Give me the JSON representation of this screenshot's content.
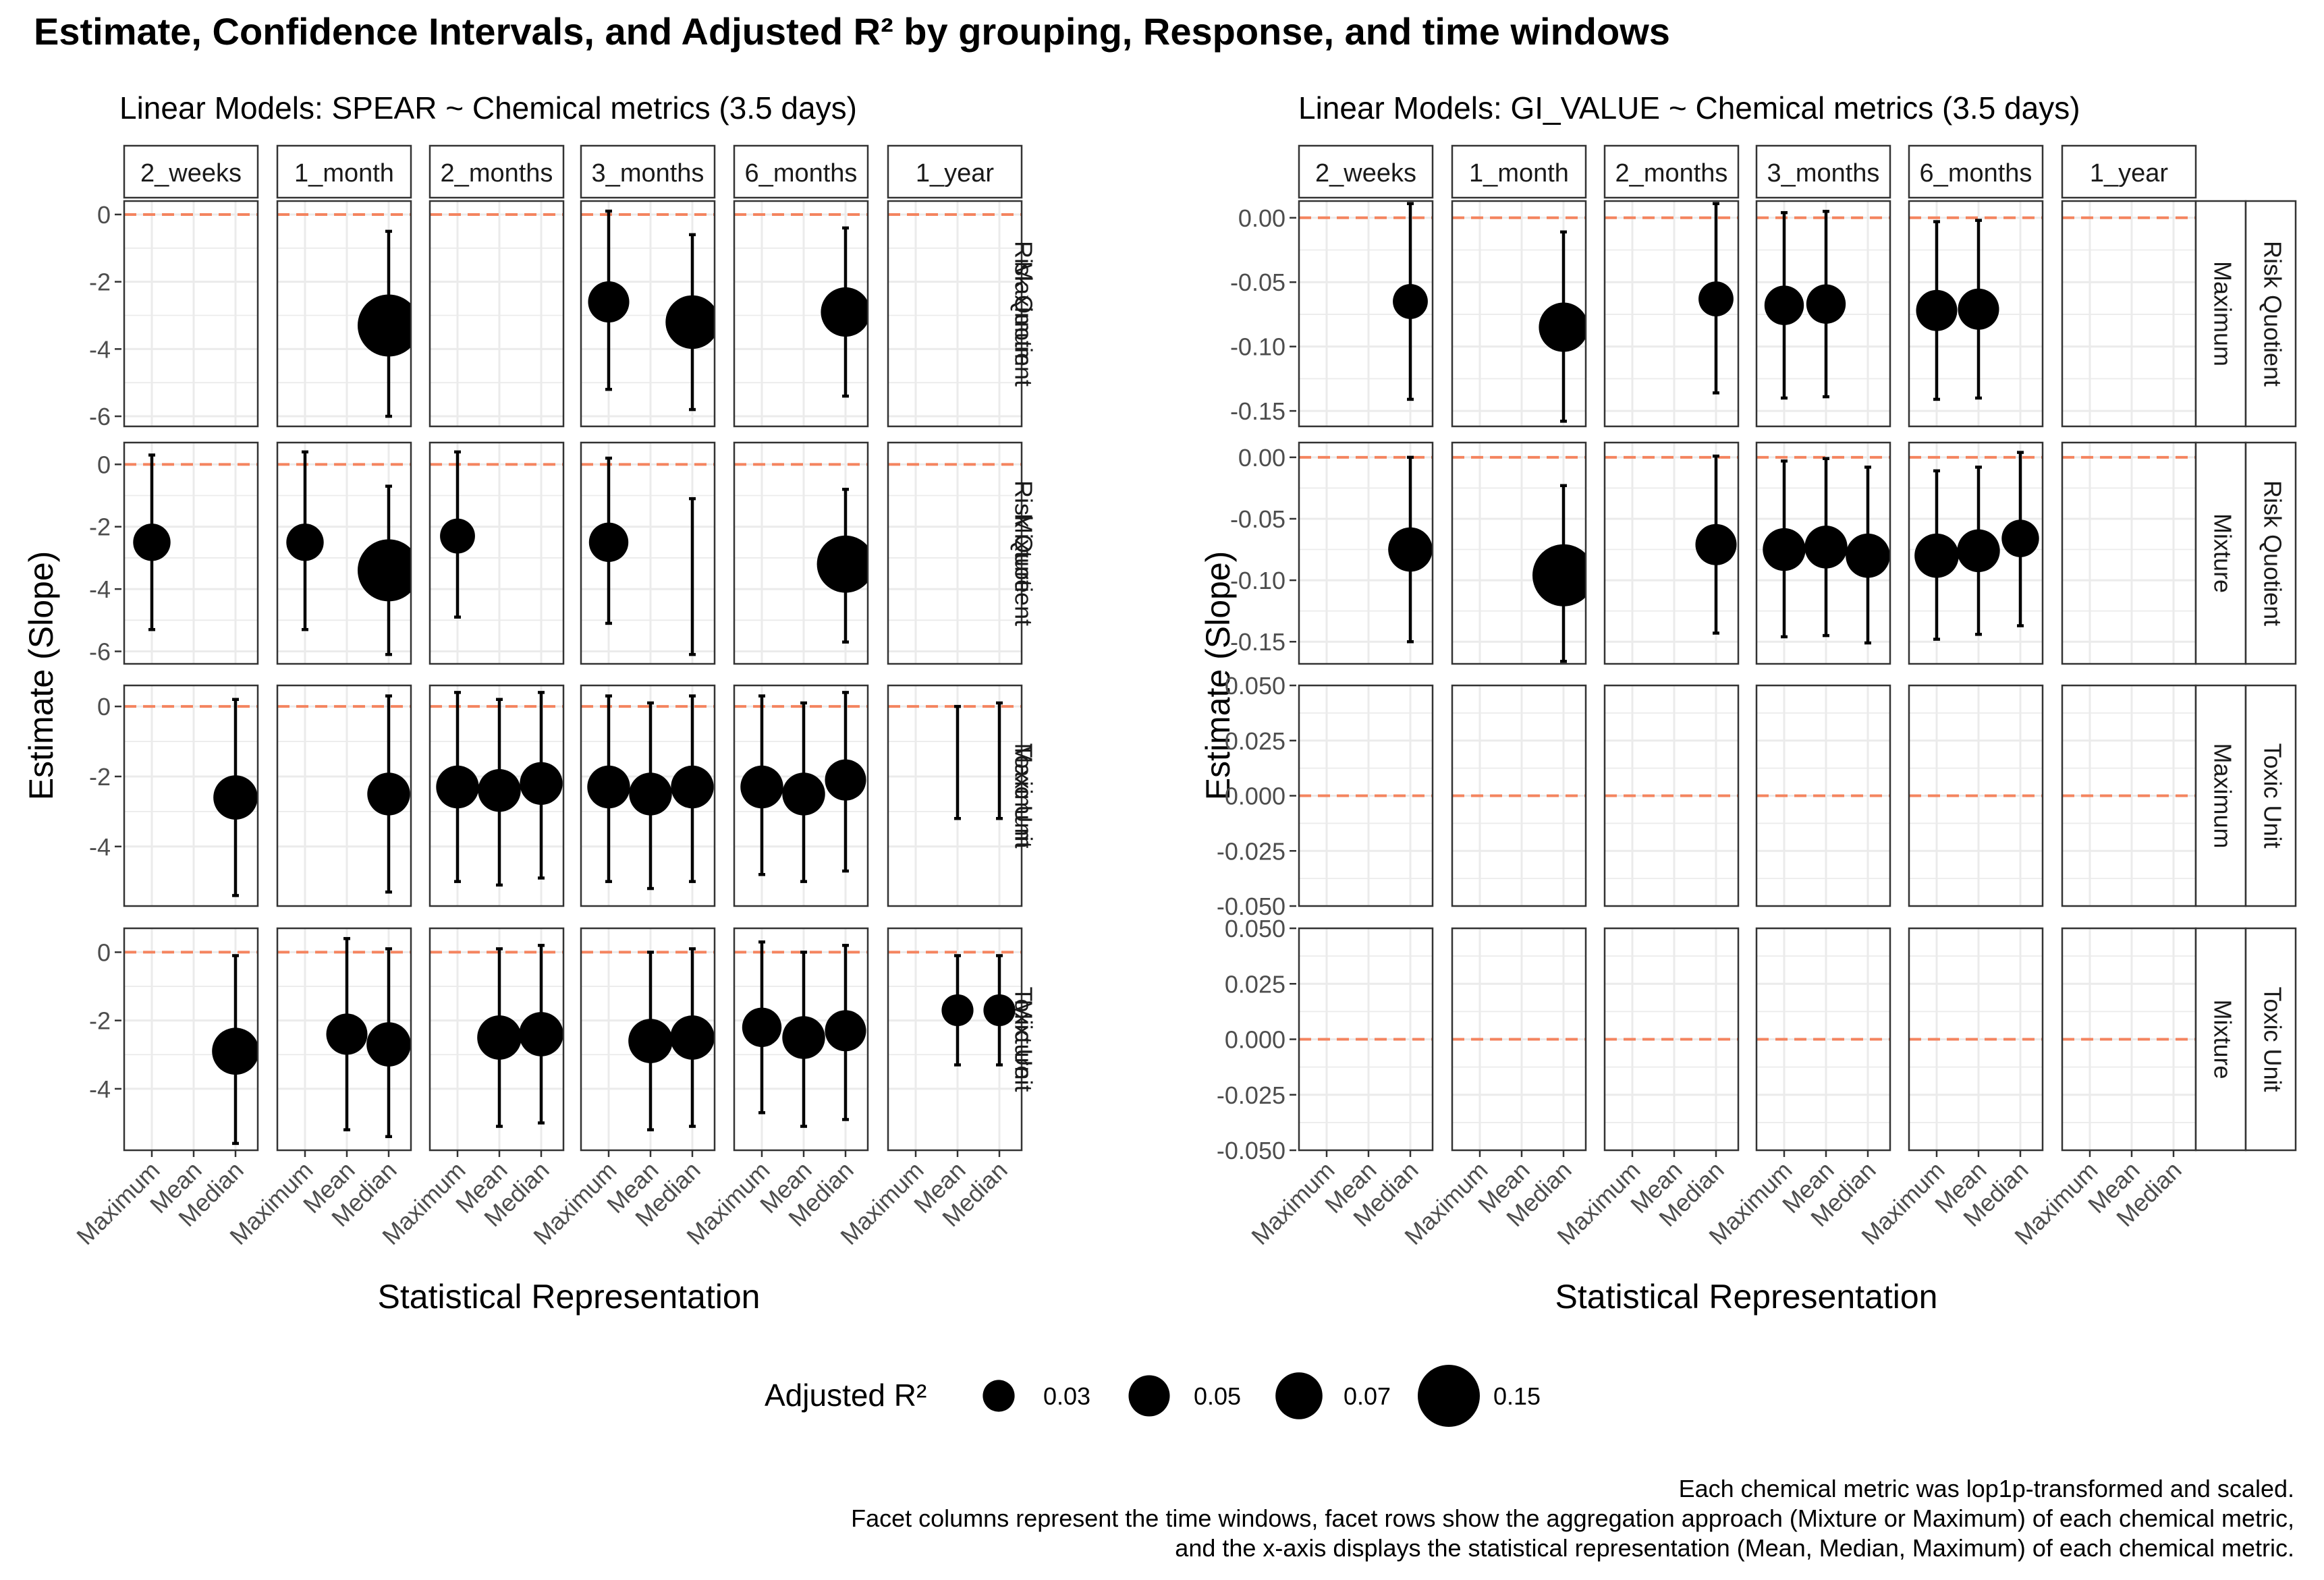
{
  "title": "Estimate, Confidence Intervals, and Adjusted R² by grouping, Response, and time windows",
  "colors": {
    "reference_line": "#f4845f",
    "points": "#000000",
    "grid": "#ebebeb",
    "panel_border": "#333333",
    "strip_border": "#333333",
    "axis_text": "#4d4d4d"
  },
  "size_legend": {
    "title": "Adjusted R²",
    "entries": [
      {
        "label": "0.03",
        "value": 0.03
      },
      {
        "label": "0.05",
        "value": 0.05
      },
      {
        "label": "0.07",
        "value": 0.07
      },
      {
        "label": "0.15",
        "value": 0.15
      }
    ]
  },
  "caption": [
    "Each chemical metric was lop1p-transformed and scaled.",
    "Facet columns represent the time windows, facet rows show the aggregation approach (Mixture or Maximum) of each chemical metric,",
    "and the x-axis displays the statistical representation (Mean, Median, Maximum) of each chemical metric."
  ],
  "chart_data": [
    {
      "type": "scatter",
      "subtitle": "Linear Models: SPEAR ~ Chemical metrics (3.5 days)",
      "xlabel": "Statistical Representation",
      "ylabel": "Estimate (Slope)",
      "categories": [
        "Maximum",
        "Mean",
        "Median"
      ],
      "columns": [
        "2_weeks",
        "1_month",
        "2_months",
        "3_months",
        "6_months",
        "1_year"
      ],
      "grid": true,
      "reference_line_y": 0,
      "rows": [
        {
          "label_a": "Risk Quotient",
          "label_b": "Maximum",
          "ylim": [
            -6.3,
            0.4
          ],
          "yticks": [
            0,
            -2,
            -4,
            -6
          ],
          "ytick_labels": [
            "0",
            "-2",
            "-4",
            "-6"
          ],
          "points": [
            {
              "window": "1_month",
              "category": "Median",
              "y": -3.3,
              "lo": -6.0,
              "hi": -0.5,
              "r2": 0.15
            },
            {
              "window": "3_months",
              "category": "Maximum",
              "y": -2.6,
              "lo": -5.2,
              "hi": 0.1,
              "r2": 0.05
            },
            {
              "window": "3_months",
              "category": "Median",
              "y": -3.2,
              "lo": -5.8,
              "hi": -0.6,
              "r2": 0.1
            },
            {
              "window": "6_months",
              "category": "Median",
              "y": -2.9,
              "lo": -5.4,
              "hi": -0.4,
              "r2": 0.08
            }
          ]
        },
        {
          "label_a": "Risk Quotient",
          "label_b": "Mixture",
          "ylim": [
            -6.4,
            0.7
          ],
          "yticks": [
            0,
            -2,
            -4,
            -6
          ],
          "ytick_labels": [
            "0",
            "-2",
            "-4",
            "-6"
          ],
          "points": [
            {
              "window": "2_weeks",
              "category": "Maximum",
              "y": -2.5,
              "lo": -5.3,
              "hi": 0.3,
              "r2": 0.04
            },
            {
              "window": "1_month",
              "category": "Maximum",
              "y": -2.5,
              "lo": -5.3,
              "hi": 0.4,
              "r2": 0.04
            },
            {
              "window": "1_month",
              "category": "Median",
              "y": -3.4,
              "lo": -6.1,
              "hi": -0.7,
              "r2": 0.15
            },
            {
              "window": "2_months",
              "category": "Maximum",
              "y": -2.3,
              "lo": -4.9,
              "hi": 0.4,
              "r2": 0.035
            },
            {
              "window": "3_months",
              "category": "Maximum",
              "y": -2.5,
              "lo": -5.1,
              "hi": 0.2,
              "r2": 0.045
            },
            {
              "window": "3_months",
              "category": "Median",
              "y": null,
              "lo": -6.1,
              "hi": -1.1,
              "r2": null
            },
            {
              "window": "6_months",
              "category": "Median",
              "y": -3.2,
              "lo": -5.7,
              "hi": -0.8,
              "r2": 0.12
            }
          ]
        },
        {
          "label_a": "Toxic Unit",
          "label_b": "Maximum",
          "ylim": [
            -5.7,
            0.6
          ],
          "yticks": [
            0,
            -2,
            -4
          ],
          "ytick_labels": [
            "0",
            "-2",
            "-4"
          ],
          "points": [
            {
              "window": "2_weeks",
              "category": "Median",
              "y": -2.6,
              "lo": -5.4,
              "hi": 0.2,
              "r2": 0.06
            },
            {
              "window": "1_month",
              "category": "Median",
              "y": -2.5,
              "lo": -5.3,
              "hi": 0.3,
              "r2": 0.055
            },
            {
              "window": "2_months",
              "category": "Maximum",
              "y": -2.3,
              "lo": -5.0,
              "hi": 0.4,
              "r2": 0.055
            },
            {
              "window": "2_months",
              "category": "Mean",
              "y": -2.4,
              "lo": -5.1,
              "hi": 0.2,
              "r2": 0.055
            },
            {
              "window": "2_months",
              "category": "Median",
              "y": -2.2,
              "lo": -4.9,
              "hi": 0.4,
              "r2": 0.055
            },
            {
              "window": "3_months",
              "category": "Maximum",
              "y": -2.3,
              "lo": -5.0,
              "hi": 0.3,
              "r2": 0.055
            },
            {
              "window": "3_months",
              "category": "Mean",
              "y": -2.5,
              "lo": -5.2,
              "hi": 0.1,
              "r2": 0.055
            },
            {
              "window": "3_months",
              "category": "Median",
              "y": -2.3,
              "lo": -5.0,
              "hi": 0.3,
              "r2": 0.055
            },
            {
              "window": "6_months",
              "category": "Maximum",
              "y": -2.3,
              "lo": -4.8,
              "hi": 0.3,
              "r2": 0.055
            },
            {
              "window": "6_months",
              "category": "Mean",
              "y": -2.5,
              "lo": -5.0,
              "hi": 0.1,
              "r2": 0.055
            },
            {
              "window": "6_months",
              "category": "Median",
              "y": -2.1,
              "lo": -4.7,
              "hi": 0.4,
              "r2": 0.05
            },
            {
              "window": "1_year",
              "category": "Mean",
              "y": null,
              "lo": -3.2,
              "hi": 0.0,
              "r2": null
            },
            {
              "window": "1_year",
              "category": "Median",
              "y": null,
              "lo": -3.2,
              "hi": 0.1,
              "r2": null
            }
          ]
        },
        {
          "label_a": "Toxic Unit",
          "label_b": "Mixture",
          "ylim": [
            -5.8,
            0.7
          ],
          "yticks": [
            0,
            -2,
            -4
          ],
          "ytick_labels": [
            "0",
            "-2",
            "-4"
          ],
          "points": [
            {
              "window": "2_weeks",
              "category": "Median",
              "y": -2.9,
              "lo": -5.6,
              "hi": -0.1,
              "r2": 0.07
            },
            {
              "window": "1_month",
              "category": "Mean",
              "y": -2.4,
              "lo": -5.2,
              "hi": 0.4,
              "r2": 0.05
            },
            {
              "window": "1_month",
              "category": "Median",
              "y": -2.7,
              "lo": -5.4,
              "hi": 0.1,
              "r2": 0.06
            },
            {
              "window": "2_months",
              "category": "Mean",
              "y": -2.5,
              "lo": -5.1,
              "hi": 0.1,
              "r2": 0.06
            },
            {
              "window": "2_months",
              "category": "Median",
              "y": -2.4,
              "lo": -5.0,
              "hi": 0.2,
              "r2": 0.06
            },
            {
              "window": "3_months",
              "category": "Mean",
              "y": -2.6,
              "lo": -5.2,
              "hi": 0.0,
              "r2": 0.06
            },
            {
              "window": "3_months",
              "category": "Median",
              "y": -2.5,
              "lo": -5.1,
              "hi": 0.1,
              "r2": 0.06
            },
            {
              "window": "6_months",
              "category": "Maximum",
              "y": -2.2,
              "lo": -4.7,
              "hi": 0.3,
              "r2": 0.045
            },
            {
              "window": "6_months",
              "category": "Mean",
              "y": -2.5,
              "lo": -5.1,
              "hi": 0.0,
              "r2": 0.055
            },
            {
              "window": "6_months",
              "category": "Median",
              "y": -2.3,
              "lo": -4.9,
              "hi": 0.2,
              "r2": 0.05
            },
            {
              "window": "1_year",
              "category": "Mean",
              "y": -1.7,
              "lo": -3.3,
              "hi": -0.1,
              "r2": 0.03
            },
            {
              "window": "1_year",
              "category": "Median",
              "y": -1.7,
              "lo": -3.3,
              "hi": -0.1,
              "r2": 0.03
            }
          ]
        }
      ]
    },
    {
      "type": "scatter",
      "subtitle": "Linear Models: GI_VALUE ~ Chemical metrics (3.5 days)",
      "xlabel": "Statistical Representation",
      "ylabel": "Estimate (Slope)",
      "categories": [
        "Maximum",
        "Mean",
        "Median"
      ],
      "columns": [
        "2_weeks",
        "1_month",
        "2_months",
        "3_months",
        "6_months",
        "1_year"
      ],
      "grid": true,
      "reference_line_y": 0,
      "rows": [
        {
          "label_a": "Risk Quotient",
          "label_b": "Maximum",
          "ylim": [
            -0.162,
            0.013
          ],
          "yticks": [
            0,
            -0.05,
            -0.1,
            -0.15
          ],
          "ytick_labels": [
            "0.00",
            "-0.05",
            "-0.10",
            "-0.15"
          ],
          "points": [
            {
              "window": "2_weeks",
              "category": "Median",
              "y": -0.065,
              "lo": -0.141,
              "hi": 0.011,
              "r2": 0.035
            },
            {
              "window": "1_month",
              "category": "Median",
              "y": -0.085,
              "lo": -0.158,
              "hi": -0.011,
              "r2": 0.08
            },
            {
              "window": "2_months",
              "category": "Median",
              "y": -0.063,
              "lo": -0.136,
              "hi": 0.011,
              "r2": 0.035
            },
            {
              "window": "3_months",
              "category": "Maximum",
              "y": -0.068,
              "lo": -0.14,
              "hi": 0.004,
              "r2": 0.045
            },
            {
              "window": "3_months",
              "category": "Mean",
              "y": -0.067,
              "lo": -0.139,
              "hi": 0.005,
              "r2": 0.045
            },
            {
              "window": "6_months",
              "category": "Maximum",
              "y": -0.072,
              "lo": -0.141,
              "hi": -0.003,
              "r2": 0.05
            },
            {
              "window": "6_months",
              "category": "Mean",
              "y": -0.071,
              "lo": -0.14,
              "hi": -0.002,
              "r2": 0.05
            }
          ]
        },
        {
          "label_a": "Risk Quotient",
          "label_b": "Mixture",
          "ylim": [
            -0.168,
            0.012
          ],
          "yticks": [
            0,
            -0.05,
            -0.1,
            -0.15
          ],
          "ytick_labels": [
            "0.00",
            "-0.05",
            "-0.10",
            "-0.15"
          ],
          "points": [
            {
              "window": "2_weeks",
              "category": "Median",
              "y": -0.075,
              "lo": -0.15,
              "hi": 0.0,
              "r2": 0.06
            },
            {
              "window": "1_month",
              "category": "Median",
              "y": -0.096,
              "lo": -0.166,
              "hi": -0.023,
              "r2": 0.15
            },
            {
              "window": "2_months",
              "category": "Median",
              "y": -0.071,
              "lo": -0.143,
              "hi": 0.001,
              "r2": 0.05
            },
            {
              "window": "3_months",
              "category": "Maximum",
              "y": -0.075,
              "lo": -0.146,
              "hi": -0.003,
              "r2": 0.055
            },
            {
              "window": "3_months",
              "category": "Mean",
              "y": -0.073,
              "lo": -0.145,
              "hi": -0.001,
              "r2": 0.055
            },
            {
              "window": "3_months",
              "category": "Median",
              "y": -0.08,
              "lo": -0.151,
              "hi": -0.008,
              "r2": 0.06
            },
            {
              "window": "6_months",
              "category": "Maximum",
              "y": -0.08,
              "lo": -0.148,
              "hi": -0.011,
              "r2": 0.06
            },
            {
              "window": "6_months",
              "category": "Mean",
              "y": -0.076,
              "lo": -0.144,
              "hi": -0.008,
              "r2": 0.055
            },
            {
              "window": "6_months",
              "category": "Median",
              "y": -0.066,
              "lo": -0.137,
              "hi": 0.004,
              "r2": 0.04
            }
          ]
        },
        {
          "label_a": "Toxic Unit",
          "label_b": "Maximum",
          "ylim": [
            -0.05,
            0.05
          ],
          "yticks": [
            0.05,
            0.025,
            0,
            -0.025,
            -0.05
          ],
          "ytick_labels": [
            "0.050",
            "0.025",
            "0.000",
            "-0.025",
            "-0.050"
          ],
          "points": []
        },
        {
          "label_a": "Toxic Unit",
          "label_b": "Mixture",
          "ylim": [
            -0.05,
            0.05
          ],
          "yticks": [
            0.05,
            0.025,
            0,
            -0.025,
            -0.05
          ],
          "ytick_labels": [
            "0.050",
            "0.025",
            "0.000",
            "-0.025",
            "-0.050"
          ],
          "points": []
        }
      ]
    }
  ]
}
